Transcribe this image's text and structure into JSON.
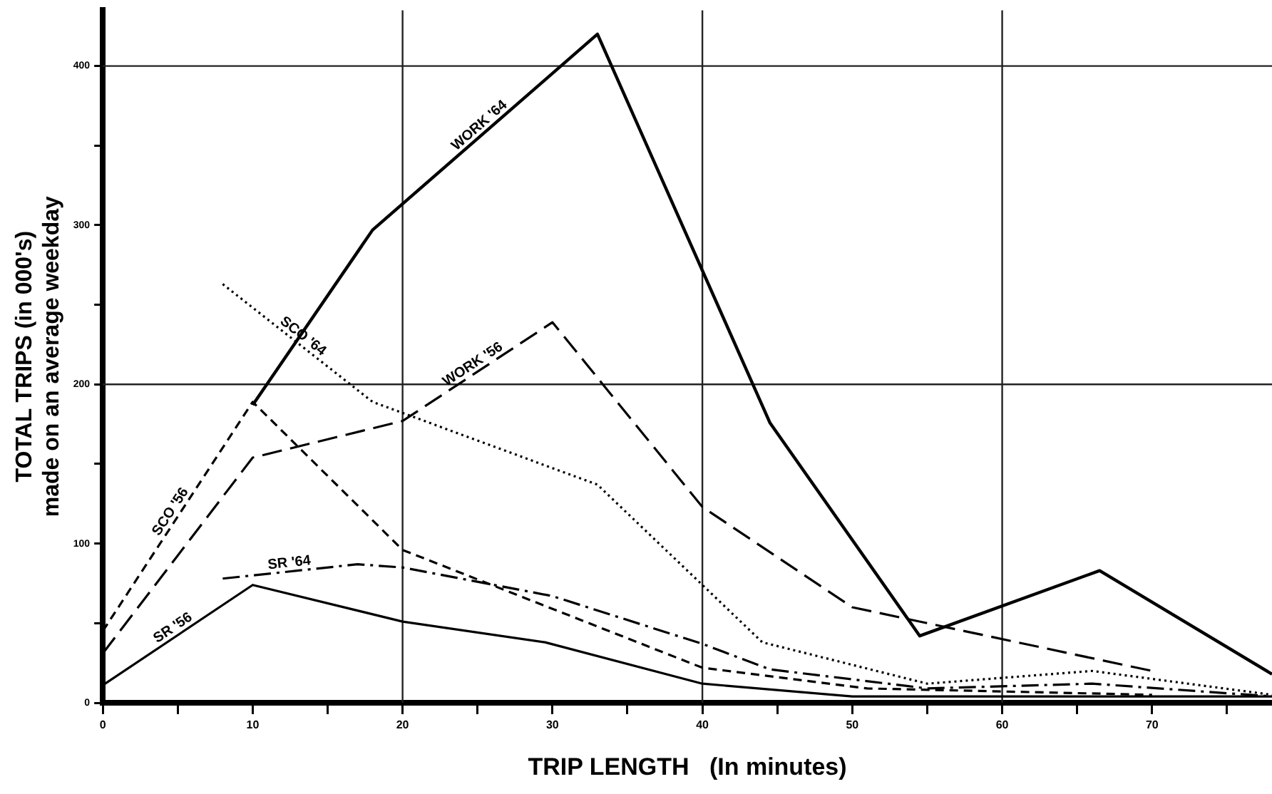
{
  "chart_data": {
    "type": "line",
    "xlabel": "TRIP LENGTH   (In minutes)",
    "ylabel": "TOTAL TRIPS (in 000's)\nmade on an average weekday",
    "xlim": [
      0,
      78
    ],
    "ylim": [
      0,
      435
    ],
    "xticks": [
      0,
      {
        "value": 5,
        "label": null
      },
      10,
      {
        "value": 15,
        "label": null
      },
      20,
      {
        "value": 25,
        "label": null
      },
      30,
      {
        "value": 35,
        "label": null
      },
      40,
      {
        "value": 45,
        "label": null
      },
      50,
      {
        "value": 55,
        "label": null
      },
      60,
      {
        "value": 65,
        "label": null
      },
      70,
      {
        "value": 75,
        "label": null
      }
    ],
    "yticks": [
      0,
      {
        "value": 50,
        "label": null
      },
      100,
      {
        "value": 150,
        "label": null
      },
      200,
      {
        "value": 250,
        "label": null
      },
      300,
      {
        "value": 350,
        "label": null
      },
      400
    ],
    "grid": false,
    "legend": false,
    "marker": "none",
    "ref_lines": [
      {
        "axis": "x",
        "value": 20
      },
      {
        "axis": "x",
        "value": 40
      },
      {
        "axis": "x",
        "value": 60
      },
      {
        "axis": "y",
        "value": 200
      },
      {
        "axis": "y",
        "value": 400
      }
    ],
    "series": [
      {
        "name": "WORK '64",
        "color": "#000000",
        "line_style": "solid",
        "x": [
          10,
          18,
          33,
          44.5,
          54.5,
          66.5,
          78
        ],
        "values": [
          187,
          297,
          420,
          176,
          42,
          83,
          18
        ]
      },
      {
        "name": "WORK '56",
        "color": "#000000",
        "line_style": "dashed",
        "x": [
          0,
          10,
          20,
          30,
          40,
          50,
          70
        ],
        "values": [
          31,
          154,
          177,
          239,
          123,
          60,
          20
        ]
      },
      {
        "name": "SCO '64",
        "color": "#000000",
        "line_style": "dotted",
        "x": [
          8,
          18,
          33,
          40,
          44,
          55,
          66,
          78
        ],
        "values": [
          263,
          189,
          137,
          74,
          38,
          12,
          20,
          5
        ]
      },
      {
        "name": "SCO '56",
        "color": "#000000",
        "line_style": "dashed",
        "x": [
          0,
          10,
          20,
          40,
          51,
          70
        ],
        "values": [
          45,
          189,
          96,
          22,
          9,
          5
        ]
      },
      {
        "name": "SR '64",
        "color": "#000000",
        "line_style": "dashed",
        "x": [
          8,
          17,
          20,
          30,
          40,
          44.5,
          55,
          66,
          78
        ],
        "values": [
          78,
          87,
          85,
          67,
          37,
          21,
          9,
          12,
          4
        ]
      },
      {
        "name": "SR '56",
        "color": "#000000",
        "line_style": "solid",
        "x": [
          0,
          10,
          20,
          29.5,
          40,
          50,
          78
        ],
        "values": [
          11,
          74,
          51,
          38,
          12,
          4,
          4
        ]
      }
    ]
  }
}
